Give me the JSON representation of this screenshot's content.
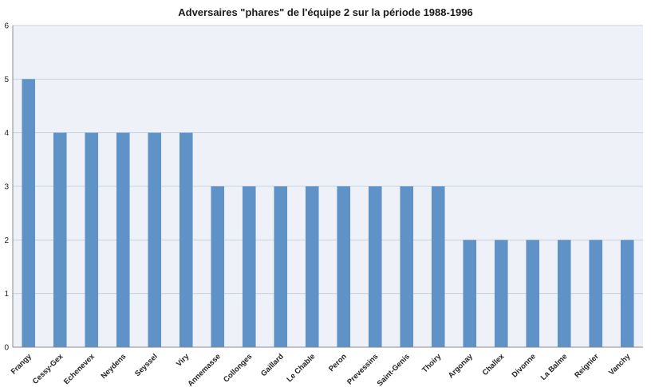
{
  "chart_data": {
    "type": "bar",
    "title": "Adversaires \"phares\" de l'équipe 2 sur la période 1988-1996",
    "xlabel": "",
    "ylabel": "",
    "ylim": [
      0,
      6
    ],
    "yticks": [
      0,
      1,
      2,
      3,
      4,
      5,
      6
    ],
    "grid": true,
    "legend": "none",
    "colors": {
      "bar": "#5f93c8",
      "plot_background": "#eef2f8",
      "grid": "#c9d1dc"
    },
    "categories": [
      "Frangy",
      "Cessy-Gex",
      "Echenevex",
      "Neydens",
      "Seyssel",
      "Viry",
      "Annemasse",
      "Collonges",
      "Gaillard",
      "Le Chable",
      "Peron",
      "Prevessins",
      "Saint-Genis",
      "Thoiry",
      "Argonay",
      "Challex",
      "Divonne",
      "La Balme",
      "Reignier",
      "Vanchy"
    ],
    "values": [
      5,
      4,
      4,
      4,
      4,
      4,
      3,
      3,
      3,
      3,
      3,
      3,
      3,
      3,
      2,
      2,
      2,
      2,
      2,
      2
    ]
  }
}
